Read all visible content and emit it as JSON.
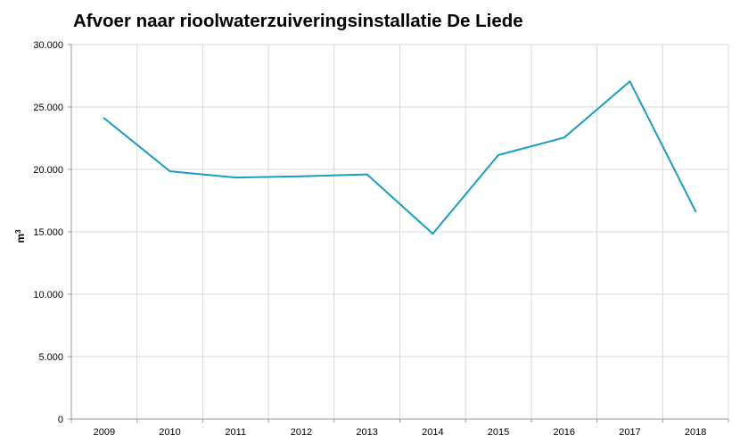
{
  "chart_data": {
    "type": "line",
    "title": "Afvoer naar rioolwaterzuiveringsinstallatie De Liede",
    "xlabel": "",
    "ylabel": "m",
    "ylabel_superscript": "3",
    "categories": [
      "2009",
      "2010",
      "2011",
      "2012",
      "2013",
      "2014",
      "2015",
      "2016",
      "2017",
      "2018"
    ],
    "series": [
      {
        "values": [
          24100,
          19850,
          19350,
          19450,
          19600,
          14850,
          21150,
          22550,
          27050,
          16650
        ],
        "color": "#1a9bc4"
      }
    ],
    "ylim": [
      0,
      30000
    ],
    "yticks": [
      0,
      5000,
      10000,
      15000,
      20000,
      25000,
      30000
    ],
    "ytick_labels": [
      "0",
      "5.000",
      "10.000",
      "15.000",
      "20.000",
      "25.000",
      "30.000"
    ],
    "grid": true,
    "grid_color": "#d9d9d9",
    "axis_color": "#999999",
    "legend": "none"
  }
}
